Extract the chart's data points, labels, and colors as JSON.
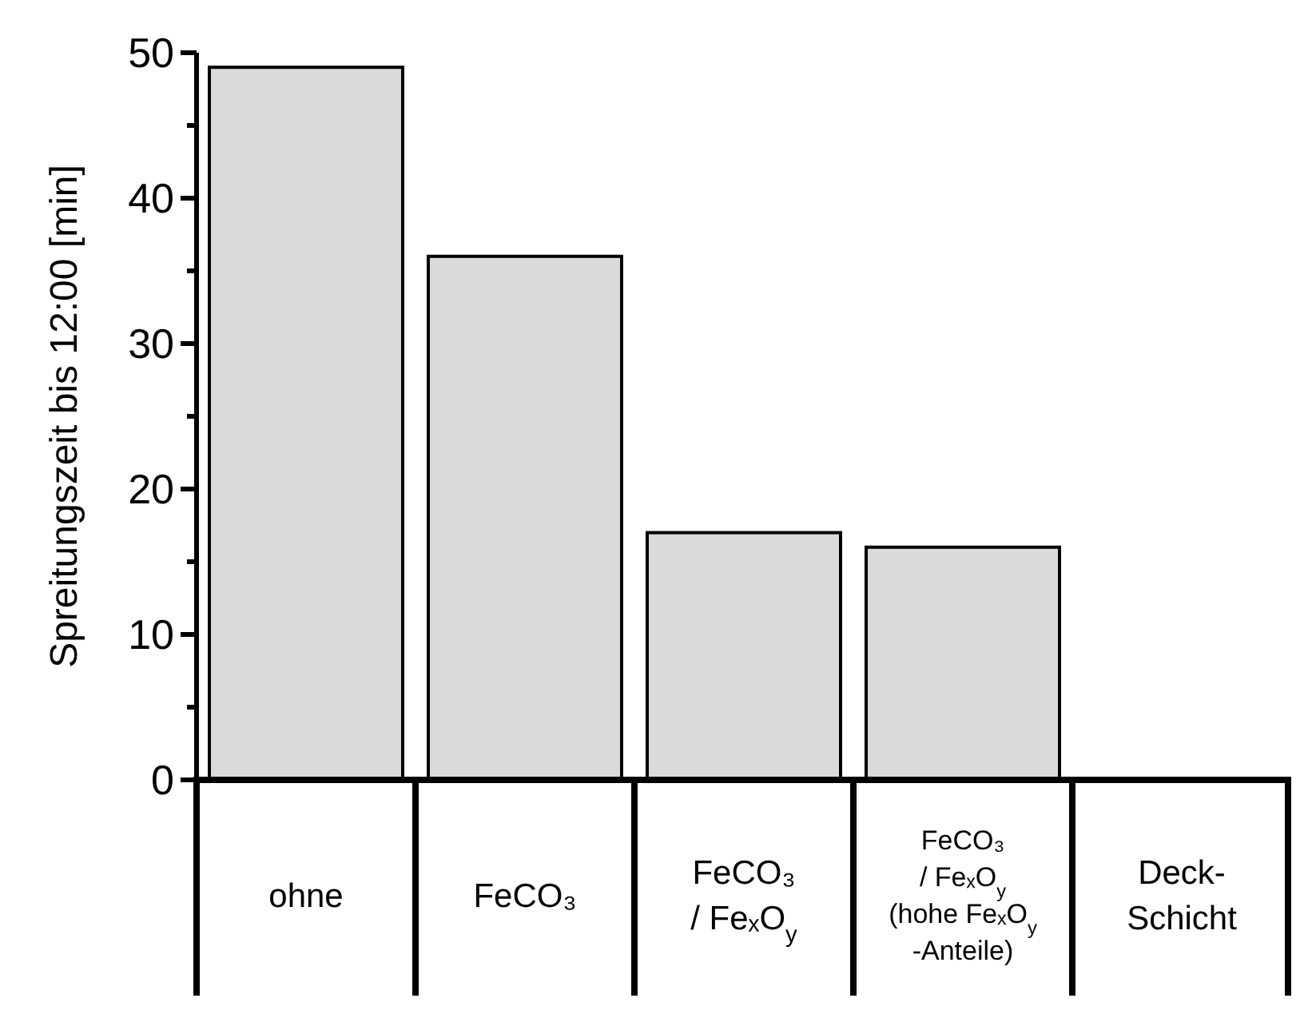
{
  "chart_data": {
    "type": "bar",
    "categories": [
      "ohne",
      "FeCO₃",
      "FeCO₃\n/ FeₓO$_{y}$",
      "FeCO₃\n/ FeₓO$_{y}$\n(hohe FeₓO$_{y}$\n-Anteile)",
      "Deck-\nSchicht"
    ],
    "values": [
      49,
      36,
      17,
      16,
      null
    ],
    "color": "#dadada",
    "ylabel": "Spreitungszeit bis 12:00 [min]",
    "ylim": [
      0,
      50
    ],
    "yticks": [
      0,
      {
        "value": 5,
        "label": null
      },
      10,
      {
        "value": 15,
        "label": null
      },
      20,
      {
        "value": 25,
        "label": null
      },
      30,
      {
        "value": 35,
        "label": null
      },
      40,
      {
        "value": 45,
        "label": null
      },
      50
    ],
    "grid": false
  }
}
